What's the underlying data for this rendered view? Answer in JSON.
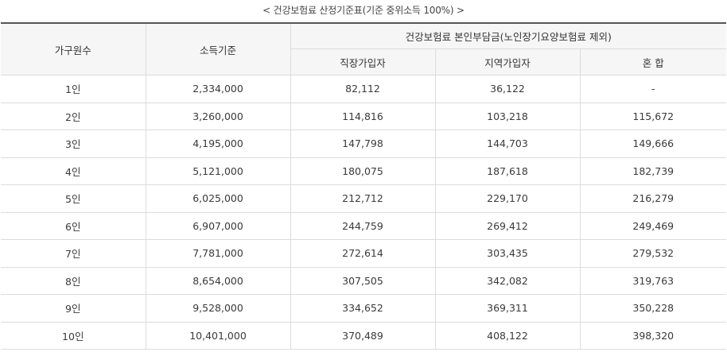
{
  "caption": "< 건강보험료 산정기준표(기준 중위소득 100%) >",
  "table": {
    "headers": {
      "household": "가구원수",
      "income": "소득기준",
      "premium_group": "건강보험료 본인부담금(노인장기요양보험료 제외)",
      "employee": "직장가입자",
      "regional": "지역가입자",
      "mixed": "혼 합"
    },
    "rows": [
      {
        "household": "1인",
        "income": "2,334,000",
        "employee": "82,112",
        "regional": "36,122",
        "mixed": "-"
      },
      {
        "household": "2인",
        "income": "3,260,000",
        "employee": "114,816",
        "regional": "103,218",
        "mixed": "115,672"
      },
      {
        "household": "3인",
        "income": "4,195,000",
        "employee": "147,798",
        "regional": "144,703",
        "mixed": "149,666"
      },
      {
        "household": "4인",
        "income": "5,121,000",
        "employee": "180,075",
        "regional": "187,618",
        "mixed": "182,739"
      },
      {
        "household": "5인",
        "income": "6,025,000",
        "employee": "212,712",
        "regional": "229,170",
        "mixed": "216,279"
      },
      {
        "household": "6인",
        "income": "6,907,000",
        "employee": "244,759",
        "regional": "269,412",
        "mixed": "249,469"
      },
      {
        "household": "7인",
        "income": "7,781,000",
        "employee": "272,614",
        "regional": "303,435",
        "mixed": "279,532"
      },
      {
        "household": "8인",
        "income": "8,654,000",
        "employee": "307,505",
        "regional": "342,082",
        "mixed": "319,763"
      },
      {
        "household": "9인",
        "income": "9,528,000",
        "employee": "334,652",
        "regional": "369,311",
        "mixed": "350,228"
      },
      {
        "household": "10인",
        "income": "10,401,000",
        "employee": "370,489",
        "regional": "408,122",
        "mixed": "398,320"
      }
    ]
  }
}
